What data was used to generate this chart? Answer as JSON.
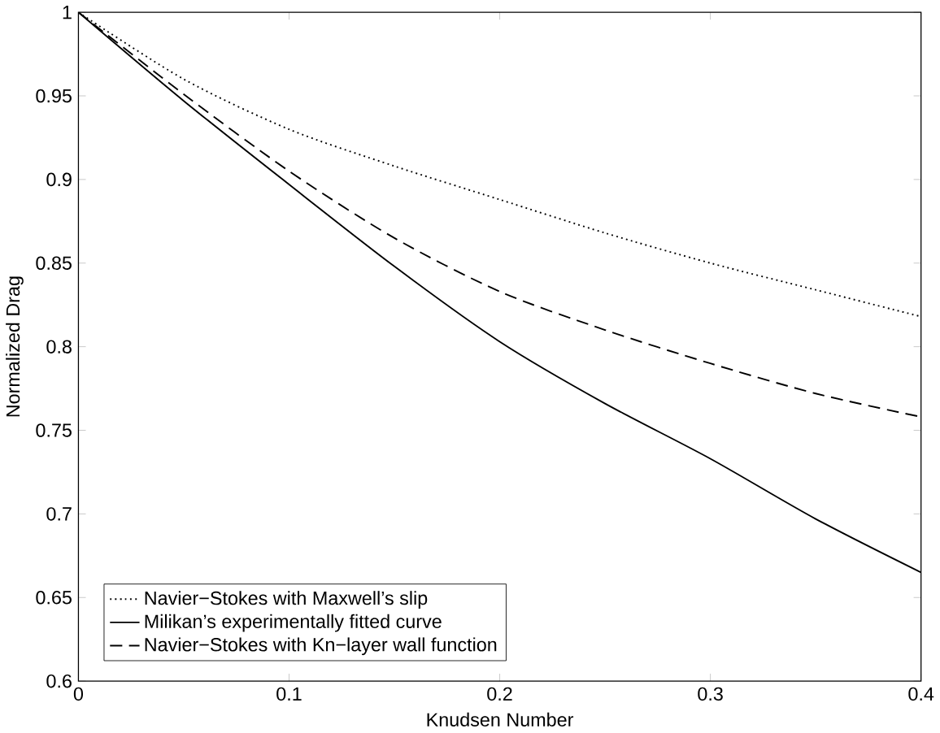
{
  "chart_data": {
    "type": "line",
    "xlabel": "Knudsen Number",
    "ylabel": "Normalized Drag",
    "x": [
      0,
      0.05,
      0.1,
      0.15,
      0.2,
      0.25,
      0.3,
      0.35,
      0.4
    ],
    "series": [
      {
        "name": "Navier−Stokes with Maxwell’s slip",
        "color": "#000000",
        "line_style": "dotted",
        "values": [
          1,
          0.96,
          0.93,
          0.908,
          0.888,
          0.868,
          0.85,
          0.834,
          0.818
        ]
      },
      {
        "name": "Milikan’s experimentally fitted curve",
        "color": "#000000",
        "line_style": "solid",
        "values": [
          1,
          0.947,
          0.897,
          0.848,
          0.803,
          0.766,
          0.733,
          0.697,
          0.665
        ]
      },
      {
        "name": "Navier−Stokes with Kn−layer wall function",
        "color": "#000000",
        "line_style": "dashed",
        "values": [
          1,
          0.951,
          0.905,
          0.865,
          0.833,
          0.81,
          0.79,
          0.772,
          0.758
        ]
      }
    ],
    "xlim": [
      0,
      0.4
    ],
    "ylim": [
      0.6,
      1
    ],
    "xticks": [
      0,
      0.1,
      0.2,
      0.3,
      0.4
    ],
    "yticks": [
      0.6,
      0.65,
      0.7,
      0.75,
      0.8,
      0.85,
      0.9,
      0.95,
      1
    ],
    "legend": "bottom left",
    "grid": false,
    "marker": "none"
  }
}
